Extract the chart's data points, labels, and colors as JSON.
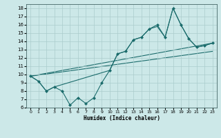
{
  "title": "",
  "xlabel": "Humidex (Indice chaleur)",
  "xlim": [
    -0.5,
    23.5
  ],
  "ylim": [
    6,
    18.5
  ],
  "xticks": [
    0,
    1,
    2,
    3,
    4,
    5,
    6,
    7,
    8,
    9,
    10,
    11,
    12,
    13,
    14,
    15,
    16,
    17,
    18,
    19,
    20,
    21,
    22,
    23
  ],
  "yticks": [
    6,
    7,
    8,
    9,
    10,
    11,
    12,
    13,
    14,
    15,
    16,
    17,
    18
  ],
  "bg_color": "#cce8e8",
  "line_color": "#1a6b6b",
  "grid_color": "#aacccc",
  "zigzag_x": [
    0,
    1,
    2,
    3,
    4,
    5,
    6,
    7,
    8,
    9,
    10,
    11,
    12,
    13,
    14,
    15,
    16,
    17,
    18,
    19,
    20,
    21,
    22,
    23
  ],
  "zigzag_y": [
    9.8,
    9.2,
    8.0,
    8.5,
    8.0,
    6.3,
    7.2,
    6.5,
    7.2,
    9.0,
    10.5,
    12.5,
    12.8,
    14.2,
    14.5,
    15.5,
    16.0,
    14.5,
    18.0,
    16.0,
    14.3,
    13.3,
    13.5,
    13.8
  ],
  "smooth_x": [
    0,
    1,
    2,
    3,
    10,
    11,
    12,
    13,
    14,
    15,
    16,
    17,
    18,
    19,
    20,
    21,
    22,
    23
  ],
  "smooth_y": [
    9.8,
    9.2,
    8.0,
    8.5,
    10.5,
    12.5,
    12.8,
    14.2,
    14.5,
    15.5,
    15.8,
    14.5,
    18.0,
    16.0,
    14.3,
    13.3,
    13.5,
    13.8
  ],
  "trend1_x": [
    0,
    23
  ],
  "trend1_y": [
    9.8,
    13.8
  ],
  "trend2_x": [
    0,
    23
  ],
  "trend2_y": [
    9.8,
    12.8
  ]
}
